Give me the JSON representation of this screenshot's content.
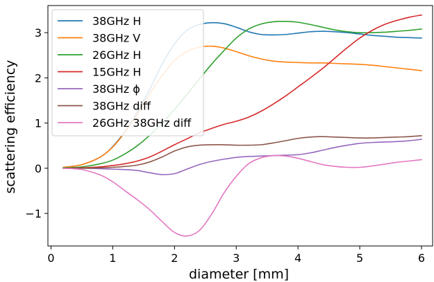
{
  "chart_data": {
    "type": "line",
    "title": "",
    "xlabel": "diameter [mm]",
    "ylabel": "scattering efficiency",
    "xlim": [
      -0.05,
      6.18
    ],
    "ylim": [
      -1.72,
      3.6
    ],
    "xticks": [
      0,
      1,
      2,
      3,
      4,
      5,
      6
    ],
    "yticks": [
      -1,
      0,
      1,
      2,
      3
    ],
    "ytick_labels": [
      "−1",
      "0",
      "1",
      "2",
      "3"
    ],
    "grid": false,
    "legend": "top-left",
    "series": [
      {
        "name": "38GHz H",
        "color": "#1f77b4",
        "x": [
          0.2,
          0.5,
          0.8,
          1.0,
          1.2,
          1.4,
          1.6,
          1.8,
          2.0,
          2.2,
          2.4,
          2.6,
          2.8,
          3.0,
          3.2,
          3.4,
          3.6,
          3.8,
          4.0,
          4.2,
          4.4,
          4.6,
          4.8,
          5.0,
          5.2,
          5.4,
          5.6,
          5.8,
          6.0
        ],
        "y": [
          0.02,
          0.08,
          0.25,
          0.48,
          0.82,
          1.25,
          1.75,
          2.3,
          2.75,
          3.05,
          3.18,
          3.22,
          3.2,
          3.12,
          3.02,
          2.96,
          2.95,
          2.96,
          2.99,
          3.02,
          3.03,
          3.02,
          3.0,
          2.97,
          2.94,
          2.92,
          2.9,
          2.89,
          2.88
        ]
      },
      {
        "name": "38GHz V",
        "color": "#ff7f0e",
        "x": [
          0.2,
          0.5,
          0.8,
          1.0,
          1.2,
          1.4,
          1.6,
          1.8,
          2.0,
          2.2,
          2.4,
          2.6,
          2.8,
          3.0,
          3.2,
          3.4,
          3.6,
          3.8,
          4.0,
          4.2,
          4.4,
          4.6,
          4.8,
          5.0,
          5.2,
          5.4,
          5.6,
          5.8,
          6.0
        ],
        "y": [
          0.02,
          0.08,
          0.25,
          0.47,
          0.8,
          1.2,
          1.65,
          2.05,
          2.38,
          2.58,
          2.68,
          2.7,
          2.66,
          2.58,
          2.49,
          2.42,
          2.37,
          2.35,
          2.34,
          2.33,
          2.33,
          2.32,
          2.31,
          2.3,
          2.28,
          2.25,
          2.22,
          2.19,
          2.16
        ]
      },
      {
        "name": "26GHz H",
        "color": "#2ca02c",
        "x": [
          0.2,
          0.5,
          0.8,
          1.0,
          1.2,
          1.4,
          1.6,
          1.8,
          2.0,
          2.2,
          2.4,
          2.6,
          2.8,
          3.0,
          3.2,
          3.4,
          3.6,
          3.8,
          4.0,
          4.2,
          4.4,
          4.6,
          4.8,
          5.0,
          5.2,
          5.4,
          5.6,
          5.8,
          6.0
        ],
        "y": [
          0.01,
          0.03,
          0.1,
          0.18,
          0.32,
          0.5,
          0.73,
          1.0,
          1.3,
          1.63,
          1.97,
          2.3,
          2.6,
          2.88,
          3.08,
          3.19,
          3.24,
          3.25,
          3.23,
          3.18,
          3.12,
          3.06,
          3.02,
          3.0,
          3.0,
          3.01,
          3.03,
          3.05,
          3.08
        ]
      },
      {
        "name": "15GHz H",
        "color": "#d62728",
        "x": [
          0.2,
          0.5,
          0.8,
          1.0,
          1.2,
          1.4,
          1.6,
          1.8,
          2.0,
          2.2,
          2.4,
          2.6,
          2.8,
          3.0,
          3.2,
          3.4,
          3.6,
          3.8,
          4.0,
          4.2,
          4.4,
          4.6,
          4.8,
          5.0,
          5.2,
          5.4,
          5.6,
          5.8,
          6.0
        ],
        "y": [
          0.0,
          0.01,
          0.03,
          0.06,
          0.1,
          0.16,
          0.25,
          0.38,
          0.52,
          0.65,
          0.78,
          0.88,
          0.97,
          1.04,
          1.13,
          1.26,
          1.42,
          1.6,
          1.8,
          2.0,
          2.21,
          2.44,
          2.67,
          2.88,
          3.05,
          3.18,
          3.27,
          3.34,
          3.39
        ]
      },
      {
        "name": "38GHz ϕ",
        "color": "#9467bd",
        "x": [
          0.2,
          0.5,
          0.8,
          1.0,
          1.2,
          1.4,
          1.6,
          1.8,
          2.0,
          2.2,
          2.4,
          2.6,
          2.8,
          3.0,
          3.2,
          3.4,
          3.6,
          3.8,
          4.0,
          4.2,
          4.4,
          4.6,
          4.8,
          5.0,
          5.2,
          5.4,
          5.6,
          5.8,
          6.0
        ],
        "y": [
          0.0,
          0.0,
          -0.01,
          -0.02,
          -0.03,
          -0.05,
          -0.1,
          -0.14,
          -0.12,
          -0.02,
          0.08,
          0.15,
          0.2,
          0.24,
          0.26,
          0.27,
          0.28,
          0.29,
          0.3,
          0.34,
          0.4,
          0.46,
          0.51,
          0.55,
          0.57,
          0.58,
          0.59,
          0.61,
          0.64
        ]
      },
      {
        "name": "38GHz diff",
        "color": "#8c564b",
        "x": [
          0.2,
          0.5,
          0.8,
          1.0,
          1.2,
          1.4,
          1.6,
          1.8,
          2.0,
          2.2,
          2.4,
          2.6,
          2.8,
          3.0,
          3.2,
          3.4,
          3.6,
          3.8,
          4.0,
          4.2,
          4.4,
          4.6,
          4.8,
          5.0,
          5.2,
          5.4,
          5.6,
          5.8,
          6.0
        ],
        "y": [
          0.0,
          0.0,
          0.01,
          0.02,
          0.04,
          0.07,
          0.14,
          0.25,
          0.38,
          0.47,
          0.51,
          0.52,
          0.52,
          0.51,
          0.51,
          0.52,
          0.56,
          0.61,
          0.66,
          0.69,
          0.7,
          0.69,
          0.68,
          0.67,
          0.67,
          0.68,
          0.69,
          0.7,
          0.72
        ]
      },
      {
        "name": "26GHz 38GHz diff",
        "color": "#e377c2",
        "x": [
          0.2,
          0.5,
          0.8,
          1.0,
          1.2,
          1.4,
          1.6,
          1.8,
          2.0,
          2.2,
          2.4,
          2.6,
          2.8,
          3.0,
          3.2,
          3.4,
          3.6,
          3.8,
          4.0,
          4.2,
          4.4,
          4.6,
          4.8,
          5.0,
          5.2,
          5.4,
          5.6,
          5.8,
          6.0
        ],
        "y": [
          0.0,
          -0.03,
          -0.15,
          -0.3,
          -0.5,
          -0.7,
          -0.92,
          -1.18,
          -1.42,
          -1.5,
          -1.38,
          -1.02,
          -0.55,
          -0.18,
          0.1,
          0.23,
          0.28,
          0.27,
          0.22,
          0.15,
          0.08,
          0.04,
          0.02,
          0.02,
          0.05,
          0.09,
          0.13,
          0.16,
          0.19
        ]
      }
    ]
  }
}
